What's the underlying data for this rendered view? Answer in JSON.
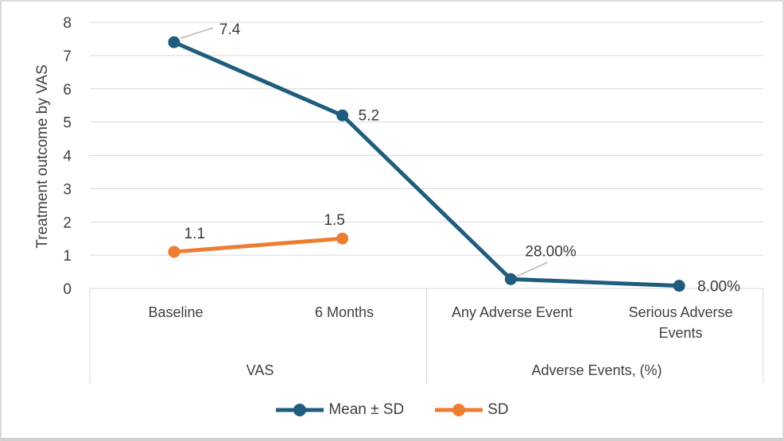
{
  "chart_data": {
    "type": "line",
    "title": "",
    "xlabel": "",
    "ylabel": "Treatment outcome by VAS",
    "ylim": [
      0,
      8
    ],
    "yticks": [
      0,
      1,
      2,
      3,
      4,
      5,
      6,
      7,
      8
    ],
    "grid": true,
    "legend_position": "bottom",
    "categories": [
      "Baseline",
      "6 Months",
      "Any Adverse Event",
      "Serious Adverse Events"
    ],
    "category_groups": [
      {
        "label": "VAS",
        "span": [
          0,
          1
        ]
      },
      {
        "label": "Adverse Events, (%)",
        "span": [
          2,
          3
        ]
      }
    ],
    "series": [
      {
        "name": "Mean ± SD",
        "color": "#1f5c7d",
        "values": [
          7.4,
          5.2,
          0.28,
          0.08
        ],
        "labels": [
          "7.4",
          "5.2",
          "28.00%",
          "8.00%"
        ]
      },
      {
        "name": "SD",
        "color": "#ed7d31",
        "values": [
          1.1,
          1.5,
          null,
          null
        ],
        "labels": [
          "1.1",
          "1.5",
          "",
          ""
        ]
      }
    ],
    "colors": {
      "gridline": "#d9d9d9",
      "axis_box": "#d9d9d9",
      "leader_line": "#a6a6a6",
      "tick_text": "#404040",
      "data_label_text": "#3a3a3a"
    }
  }
}
